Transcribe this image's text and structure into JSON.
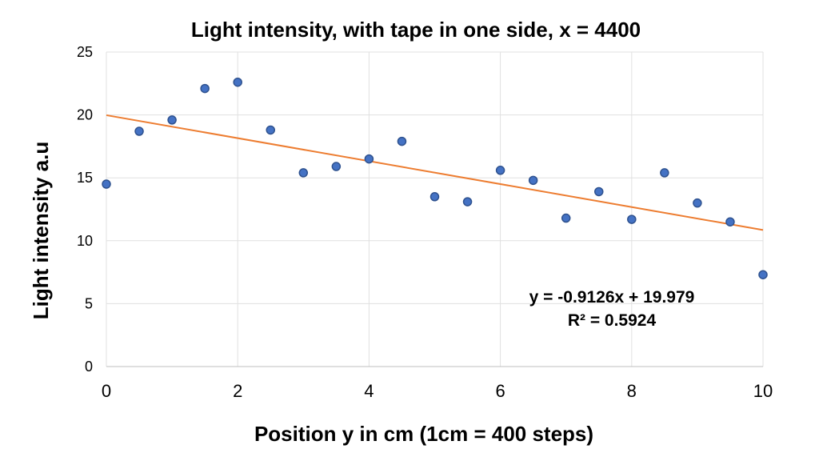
{
  "chart_data": {
    "type": "scatter",
    "title": "Light intensity, with tape in one side, x = 4400",
    "xlabel": "Position y in cm (1cm = 400 steps)",
    "ylabel": "Light intensity a.u",
    "xlim": [
      0,
      10
    ],
    "ylim": [
      0,
      25
    ],
    "xticks": [
      0,
      2,
      4,
      6,
      8,
      10
    ],
    "yticks": [
      0,
      5,
      10,
      15,
      20,
      25
    ],
    "grid": true,
    "legend": "none",
    "colors": {
      "points": "#4472C4",
      "point_edge": "#2F528F",
      "trendline": "#ED7D31",
      "grid": "#E0E0E0"
    },
    "series": [
      {
        "x": [
          0,
          0.5,
          1,
          1.5,
          2,
          2.5,
          3,
          3.5,
          4,
          4.5,
          5,
          5.5,
          6,
          6.5,
          7,
          7.5,
          8,
          8.5,
          9,
          9.5,
          10
        ],
        "y": [
          14.5,
          18.7,
          19.6,
          22.1,
          22.6,
          18.8,
          15.4,
          15.9,
          16.5,
          17.9,
          13.5,
          13.1,
          15.6,
          14.8,
          11.8,
          13.9,
          11.7,
          15.4,
          13.0,
          11.5,
          7.3
        ]
      }
    ],
    "trendline": {
      "type": "linear",
      "slope": -0.9126,
      "intercept": 19.979,
      "equation_label": "y = -0.9126x + 19.979",
      "r2_label": "R² = 0.5924"
    }
  }
}
